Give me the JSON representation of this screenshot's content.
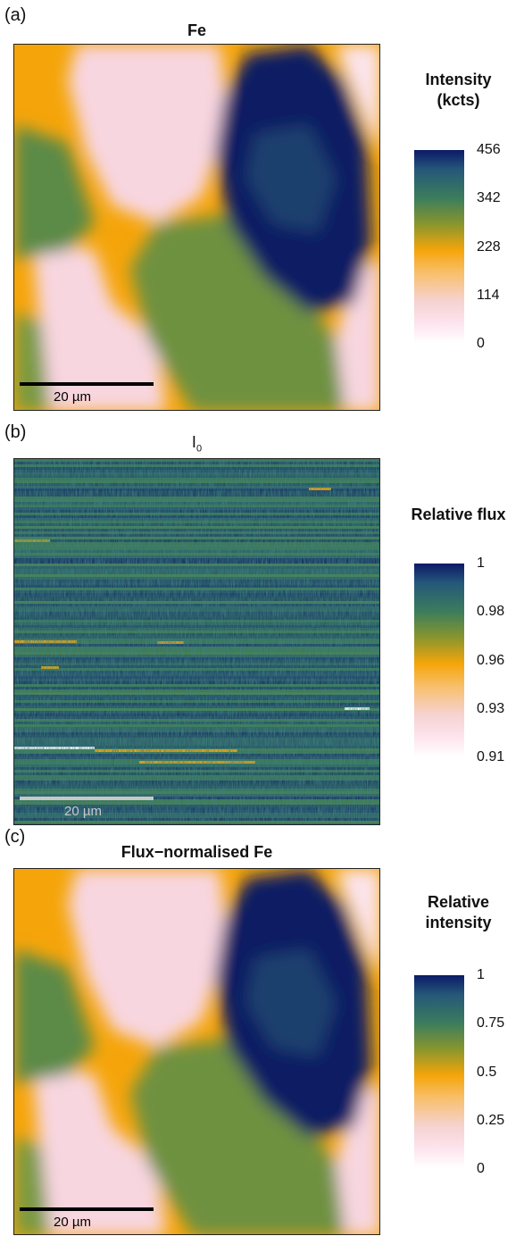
{
  "panels": [
    {
      "label": "(a)",
      "title": "Fe",
      "scalebar": "20 µm",
      "scalebar_color": "#000000",
      "colorbar_title": [
        "Intensity",
        "(kcts)"
      ],
      "ticks": [
        "456",
        "342",
        "228",
        "114",
        "0"
      ]
    },
    {
      "label": "(b)",
      "title_main": "I",
      "title_sub": "0",
      "scalebar": "20 µm",
      "scalebar_color": "#c8c8c8",
      "colorbar_title": [
        "Relative flux"
      ],
      "ticks": [
        "1",
        "0.98",
        "0.96",
        "0.93",
        "0.91"
      ]
    },
    {
      "label": "(c)",
      "title": "Flux−normalised Fe",
      "scalebar": "20 µm",
      "scalebar_color": "#000000",
      "colorbar_title": [
        "Relative",
        "intensity"
      ],
      "ticks": [
        "1",
        "0.75",
        "0.5",
        "0.25",
        "0"
      ]
    }
  ],
  "chart_data": [
    {
      "type": "heatmap",
      "title": "Fe",
      "colorbar_label": "Intensity (kcts)",
      "colorbar_range": [
        0,
        456
      ],
      "colorbar_ticks": [
        0,
        114,
        228,
        342,
        456
      ],
      "scalebar": "20 µm"
    },
    {
      "type": "heatmap",
      "title": "I0",
      "colorbar_label": "Relative flux",
      "colorbar_range": [
        0.91,
        1
      ],
      "colorbar_ticks": [
        0.91,
        0.93,
        0.96,
        0.98,
        1
      ],
      "scalebar": "20 µm"
    },
    {
      "type": "heatmap",
      "title": "Flux−normalised Fe",
      "colorbar_label": "Relative intensity",
      "colorbar_range": [
        0,
        1
      ],
      "colorbar_ticks": [
        0,
        0.25,
        0.5,
        0.75,
        1
      ],
      "scalebar": "20 µm"
    }
  ],
  "colors": {
    "navy": "#0b1a66",
    "green": "#4f8a4e",
    "orange": "#f5a50a",
    "pink": "#f8d8e2",
    "white": "#ffffff"
  }
}
